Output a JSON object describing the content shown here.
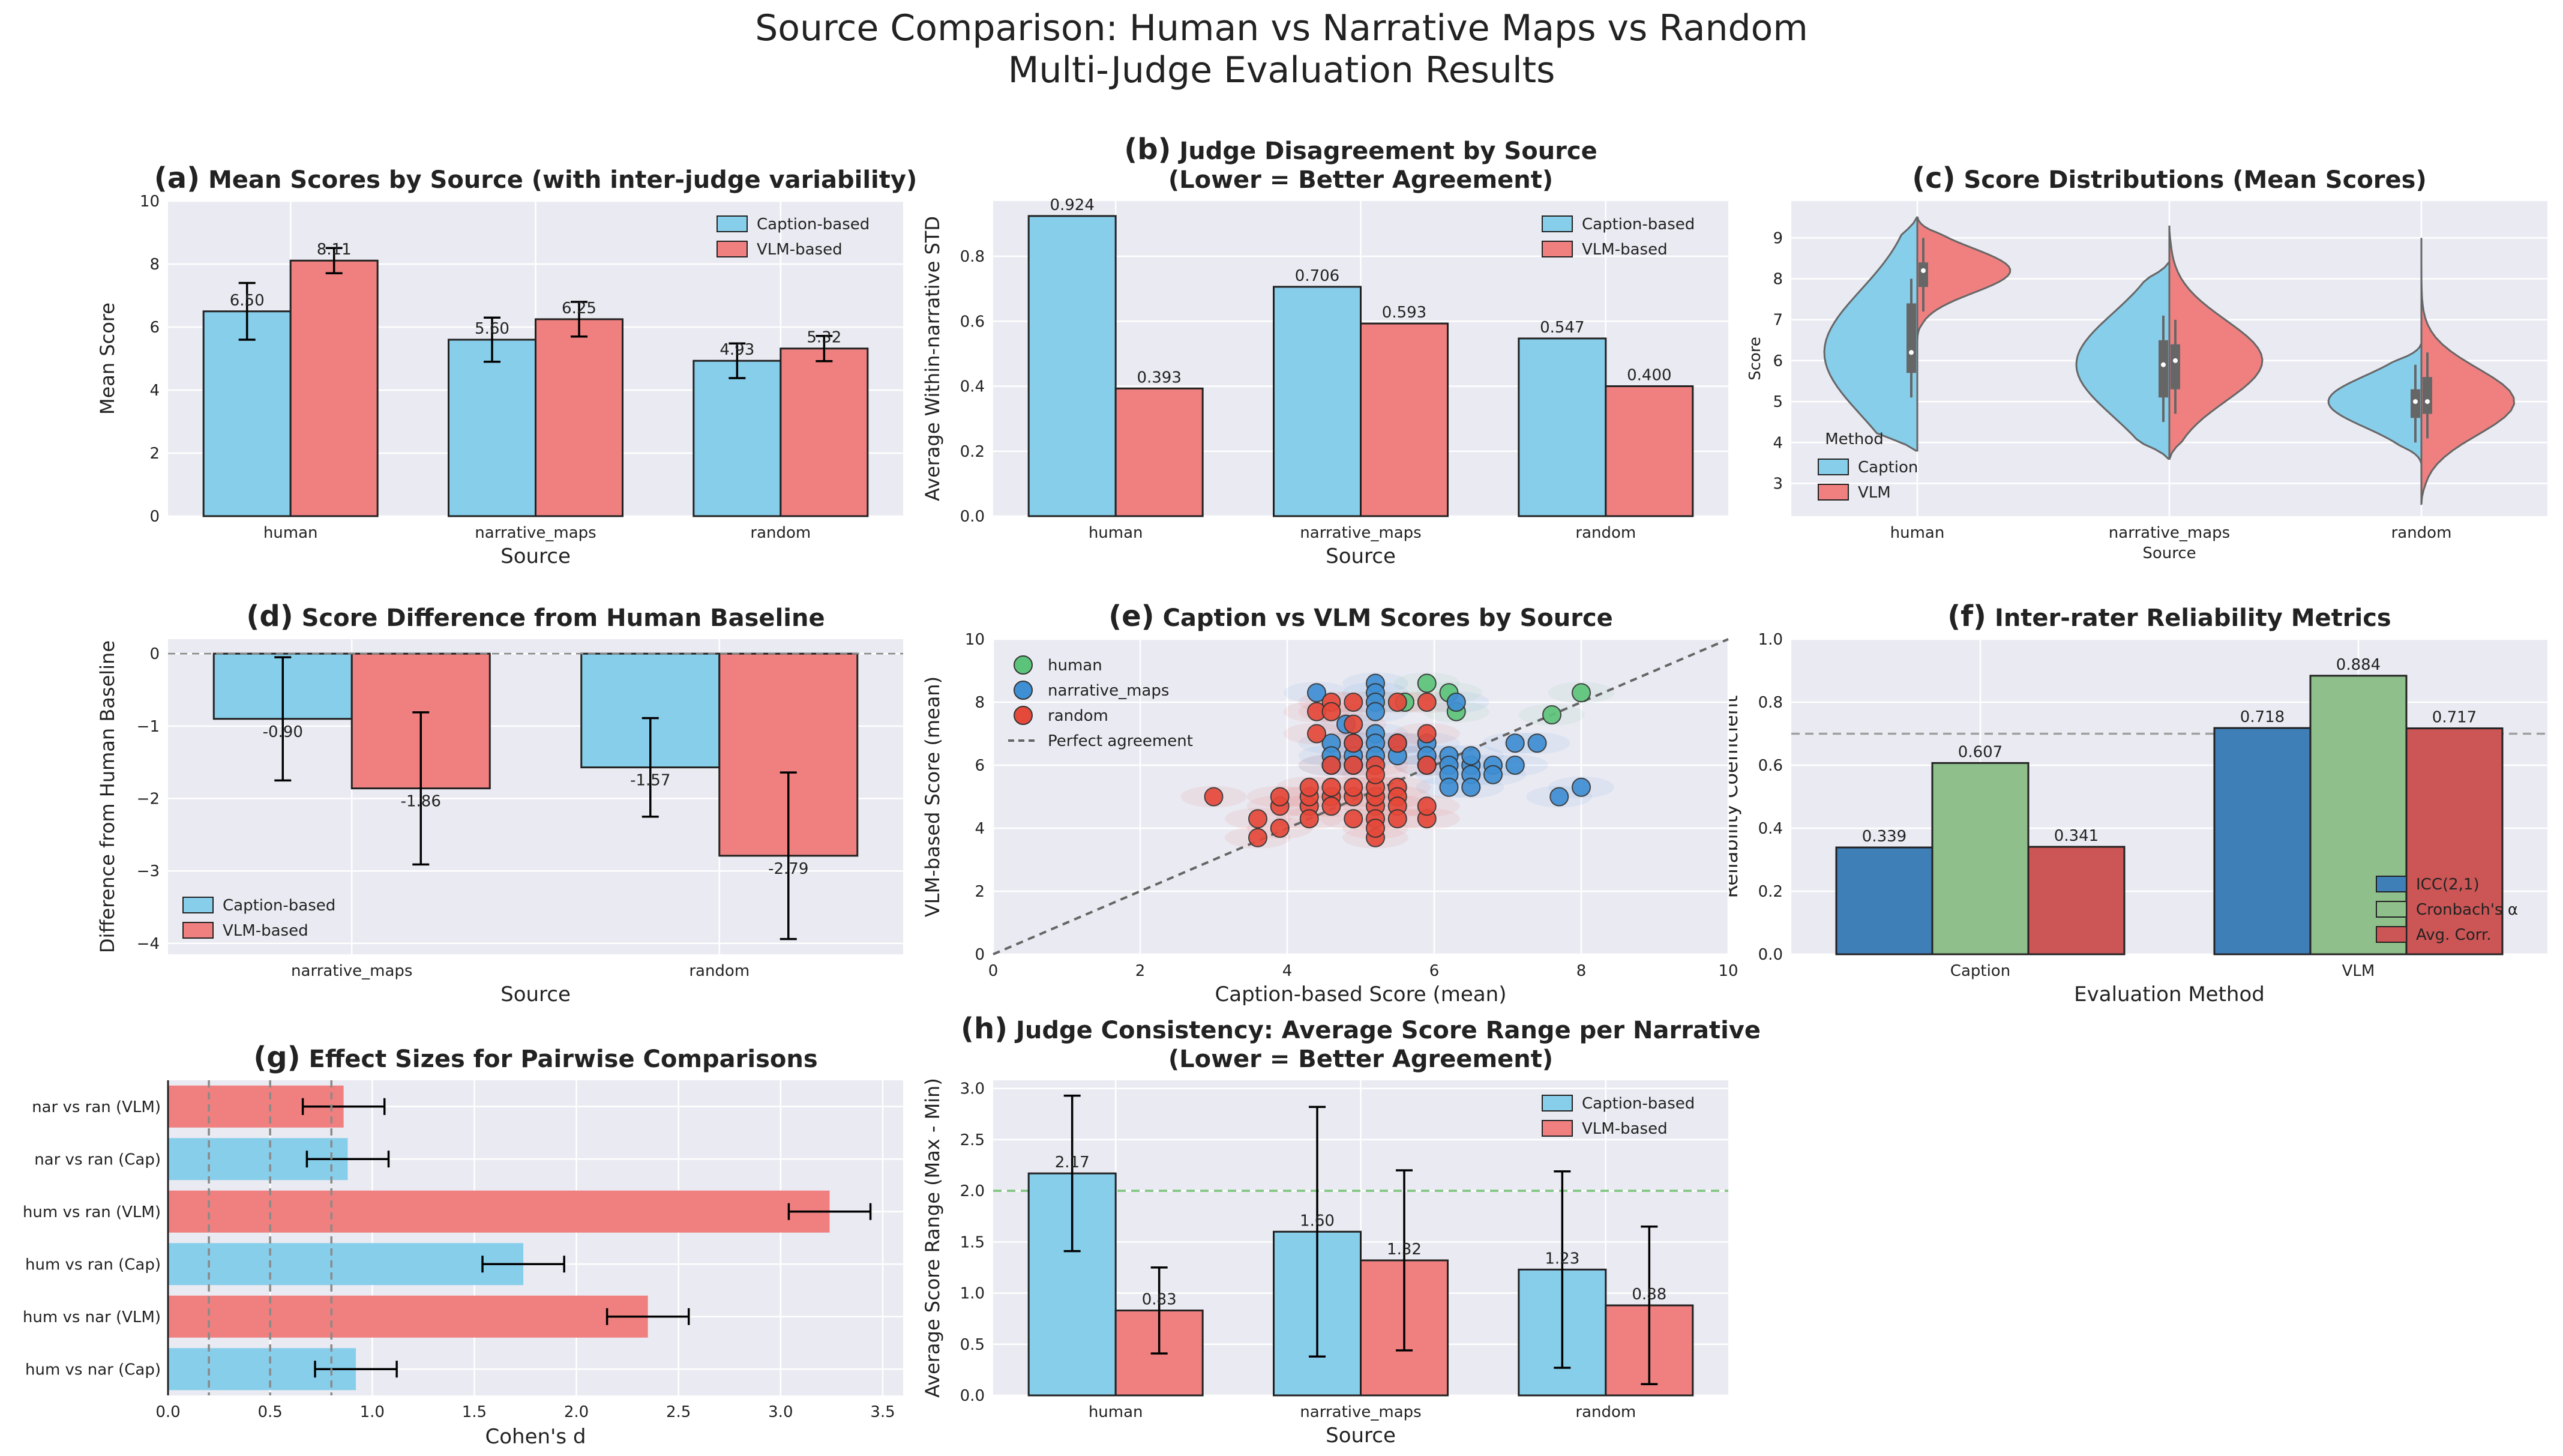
{
  "figure": {
    "title_line1": "Source Comparison: Human vs Narrative Maps vs Random",
    "title_line2": "Multi-Judge Evaluation Results"
  },
  "colors": {
    "caption": "#87CEEB",
    "vlm": "#F08080",
    "human_pt": "#5cc47a",
    "narrative_pt": "#3f8fd4",
    "random_pt": "#e5493a",
    "icc": "#3f7fb8",
    "alpha": "#8fbf8a",
    "corr": "#cc5555",
    "panel_bg": "#eaeaf2"
  },
  "chart_data": [
    {
      "id": "a",
      "type": "bar",
      "title": "Mean Scores by Source (with inter-judge variability)",
      "label": "(a)",
      "xlabel": "Source",
      "ylabel": "Mean Score",
      "ylim": [
        0,
        10
      ],
      "yticks": [
        0,
        2,
        4,
        6,
        8,
        10
      ],
      "categories": [
        "human",
        "narrative_maps",
        "random"
      ],
      "series": [
        {
          "name": "Caption-based",
          "values": [
            6.5,
            5.6,
            4.93
          ],
          "labels": [
            "6.50",
            "5.60",
            "4.93"
          ],
          "err": [
            0.9,
            0.7,
            0.55
          ]
        },
        {
          "name": "VLM-based",
          "values": [
            8.11,
            6.25,
            5.32
          ],
          "labels": [
            "8.11",
            "6.25",
            "5.32"
          ],
          "err": [
            0.4,
            0.55,
            0.4
          ]
        }
      ],
      "legend": "top-right"
    },
    {
      "id": "b",
      "type": "bar",
      "title": "Judge Disagreement by Source",
      "subtitle": "(Lower = Better Agreement)",
      "label": "(b)",
      "xlabel": "Source",
      "ylabel": "Average Within-narrative STD",
      "ylim": [
        0,
        0.97
      ],
      "yticks": [
        0.0,
        0.2,
        0.4,
        0.6,
        0.8
      ],
      "tick_labels": [
        "0.0",
        "0.2",
        "0.4",
        "0.6",
        "0.8"
      ],
      "categories": [
        "human",
        "narrative_maps",
        "random"
      ],
      "series": [
        {
          "name": "Caption-based",
          "values": [
            0.924,
            0.706,
            0.547
          ],
          "labels": [
            "0.924",
            "0.706",
            "0.547"
          ]
        },
        {
          "name": "VLM-based",
          "values": [
            0.393,
            0.593,
            0.4
          ],
          "labels": [
            "0.393",
            "0.593",
            "0.400"
          ]
        }
      ],
      "legend": "top-right"
    },
    {
      "id": "c",
      "type": "violin",
      "title": "Score Distributions (Mean Scores)",
      "label": "(c)",
      "xlabel": "Source",
      "ylabel": "Score",
      "ylim": [
        2.2,
        9.9
      ],
      "yticks": [
        3,
        4,
        5,
        6,
        7,
        8,
        9
      ],
      "categories": [
        "human",
        "narrative_maps",
        "random"
      ],
      "legend_title": "Method",
      "legend_entries": [
        "Caption",
        "VLM"
      ],
      "caption_stats": [
        {
          "min": 3.8,
          "max": 9.5,
          "median": 6.2,
          "q1": 5.7,
          "q3": 7.4
        },
        {
          "min": 3.6,
          "max": 8.4,
          "median": 5.9,
          "q1": 5.1,
          "q3": 6.5
        },
        {
          "min": 3.5,
          "max": 6.4,
          "median": 5.0,
          "q1": 4.6,
          "q3": 5.3
        }
      ],
      "vlm_stats": [
        {
          "min": 6.5,
          "max": 9.5,
          "median": 8.2,
          "q1": 7.8,
          "q3": 8.4
        },
        {
          "min": 3.6,
          "max": 9.3,
          "median": 6.0,
          "q1": 5.3,
          "q3": 6.4
        },
        {
          "min": 2.5,
          "max": 9.0,
          "median": 5.0,
          "q1": 4.7,
          "q3": 5.6
        }
      ]
    },
    {
      "id": "d",
      "type": "bar",
      "title": "Score Difference from Human Baseline",
      "label": "(d)",
      "xlabel": "Source",
      "ylabel": "Difference from Human Baseline",
      "ylim": [
        -4.15,
        0.2
      ],
      "yticks": [
        0,
        -1,
        -2,
        -3,
        -4
      ],
      "tick_labels": [
        "0",
        "−1",
        "−2",
        "−3",
        "−4"
      ],
      "categories": [
        "narrative_maps",
        "random"
      ],
      "series": [
        {
          "name": "Caption-based",
          "values": [
            -0.9,
            -1.57
          ],
          "labels": [
            "-0.90",
            "-1.57"
          ],
          "err": [
            0.85,
            0.68
          ]
        },
        {
          "name": "VLM-based",
          "values": [
            -1.86,
            -2.79
          ],
          "labels": [
            "-1.86",
            "-2.79"
          ],
          "err": [
            1.05,
            1.15
          ]
        }
      ],
      "legend": "lower-left"
    },
    {
      "id": "e",
      "type": "scatter",
      "title": "Caption vs VLM Scores by Source",
      "label": "(e)",
      "xlabel": "Caption-based Score (mean)",
      "ylabel": "VLM-based Score (mean)",
      "xlim": [
        0,
        10
      ],
      "ylim": [
        0,
        10
      ],
      "xticks": [
        0,
        2,
        4,
        6,
        8,
        10
      ],
      "yticks": [
        0,
        2,
        4,
        6,
        8,
        10
      ],
      "legend_entries": [
        "human",
        "narrative_maps",
        "random",
        "Perfect agreement"
      ],
      "series": [
        {
          "name": "human",
          "points": [
            [
              5.9,
              8.6
            ],
            [
              5.6,
              8.0
            ],
            [
              6.3,
              7.7
            ],
            [
              7.6,
              7.6
            ],
            [
              8.0,
              8.3
            ],
            [
              6.2,
              8.3
            ]
          ]
        },
        {
          "name": "narrative_maps",
          "points": [
            [
              4.4,
              8.3
            ],
            [
              5.2,
              8.6
            ],
            [
              5.2,
              8.3
            ],
            [
              5.2,
              8.0
            ],
            [
              5.2,
              7.7
            ],
            [
              6.3,
              8.0
            ],
            [
              4.8,
              7.3
            ],
            [
              4.6,
              6.7
            ],
            [
              4.6,
              6.3
            ],
            [
              4.6,
              6.0
            ],
            [
              4.9,
              6.7
            ],
            [
              4.9,
              6.3
            ],
            [
              4.9,
              6.0
            ],
            [
              5.2,
              7.0
            ],
            [
              5.2,
              6.7
            ],
            [
              5.2,
              6.3
            ],
            [
              5.5,
              6.7
            ],
            [
              5.5,
              6.3
            ],
            [
              5.9,
              6.7
            ],
            [
              5.9,
              6.3
            ],
            [
              6.2,
              6.3
            ],
            [
              6.2,
              6.0
            ],
            [
              5.9,
              6.0
            ],
            [
              6.2,
              5.7
            ],
            [
              6.2,
              5.3
            ],
            [
              6.5,
              6.0
            ],
            [
              6.5,
              5.7
            ],
            [
              6.5,
              5.3
            ],
            [
              6.8,
              6.0
            ],
            [
              6.8,
              5.7
            ],
            [
              7.1,
              6.7
            ],
            [
              7.4,
              6.7
            ],
            [
              7.1,
              6.0
            ],
            [
              6.5,
              6.3
            ],
            [
              7.7,
              5.0
            ],
            [
              8.0,
              5.3
            ]
          ]
        },
        {
          "name": "random",
          "points": [
            [
              3.0,
              5.0
            ],
            [
              3.6,
              3.7
            ],
            [
              3.6,
              4.3
            ],
            [
              3.9,
              4.0
            ],
            [
              3.9,
              4.7
            ],
            [
              3.9,
              5.0
            ],
            [
              4.3,
              4.7
            ],
            [
              4.3,
              4.3
            ],
            [
              4.3,
              5.0
            ],
            [
              4.3,
              5.3
            ],
            [
              4.4,
              7.7
            ],
            [
              4.4,
              7.0
            ],
            [
              4.6,
              5.0
            ],
            [
              4.6,
              4.7
            ],
            [
              4.6,
              5.3
            ],
            [
              4.6,
              6.0
            ],
            [
              4.9,
              4.3
            ],
            [
              4.9,
              5.0
            ],
            [
              4.9,
              5.3
            ],
            [
              4.9,
              6.0
            ],
            [
              4.9,
              6.7
            ],
            [
              4.9,
              7.3
            ],
            [
              4.9,
              8.0
            ],
            [
              5.2,
              4.7
            ],
            [
              5.2,
              5.0
            ],
            [
              5.2,
              5.3
            ],
            [
              5.2,
              4.3
            ],
            [
              5.2,
              3.7
            ],
            [
              5.2,
              4.0
            ],
            [
              5.2,
              6.0
            ],
            [
              5.2,
              5.7
            ],
            [
              5.5,
              5.3
            ],
            [
              5.5,
              5.0
            ],
            [
              5.5,
              4.7
            ],
            [
              5.5,
              4.3
            ],
            [
              5.5,
              6.7
            ],
            [
              5.5,
              8.0
            ],
            [
              5.9,
              4.3
            ],
            [
              5.9,
              4.7
            ],
            [
              5.9,
              6.0
            ],
            [
              5.9,
              7.0
            ],
            [
              5.9,
              8.0
            ],
            [
              4.6,
              8.0
            ],
            [
              4.6,
              7.7
            ]
          ]
        }
      ],
      "reference_line": "Perfect agreement"
    },
    {
      "id": "f",
      "type": "bar",
      "title": "Inter-rater Reliability Metrics",
      "label": "(f)",
      "xlabel": "Evaluation Method",
      "ylabel": "Reliability Coefficient",
      "ylim": [
        0,
        1.0
      ],
      "yticks": [
        0.0,
        0.2,
        0.4,
        0.6,
        0.8,
        1.0
      ],
      "tick_labels": [
        "0.0",
        "0.2",
        "0.4",
        "0.6",
        "0.8",
        "1.0"
      ],
      "categories": [
        "Caption",
        "VLM"
      ],
      "series": [
        {
          "name": "ICC(2,1)",
          "values": [
            0.339,
            0.718
          ],
          "labels": [
            "0.339",
            "0.718"
          ]
        },
        {
          "name": "Cronbach's α",
          "values": [
            0.607,
            0.884
          ],
          "labels": [
            "0.607",
            "0.884"
          ]
        },
        {
          "name": "Avg. Corr.",
          "values": [
            0.341,
            0.717
          ],
          "labels": [
            "0.341",
            "0.717"
          ]
        }
      ],
      "threshold": 0.7,
      "legend": "lower-right"
    },
    {
      "id": "g",
      "type": "barh",
      "title": "Effect Sizes for Pairwise Comparisons",
      "label": "(g)",
      "xlabel": "Cohen's d",
      "xlim": [
        0,
        3.6
      ],
      "xticks": [
        0.0,
        0.5,
        1.0,
        1.5,
        2.0,
        2.5,
        3.0,
        3.5
      ],
      "tick_labels": [
        "0.0",
        "0.5",
        "1.0",
        "1.5",
        "2.0",
        "2.5",
        "3.0",
        "3.5"
      ],
      "categories": [
        "nar vs ran (VLM)",
        "nar vs ran (Cap)",
        "hum vs ran (VLM)",
        "hum vs ran (Cap)",
        "hum vs nar (VLM)",
        "hum vs nar (Cap)"
      ],
      "values": [
        0.86,
        0.88,
        3.24,
        1.74,
        2.35,
        0.92
      ],
      "err": [
        0.2,
        0.2,
        0.2,
        0.2,
        0.2,
        0.2
      ],
      "kinds": [
        "vlm",
        "cap",
        "vlm",
        "cap",
        "vlm",
        "cap"
      ],
      "reference_lines": [
        0.2,
        0.5,
        0.8
      ]
    },
    {
      "id": "h",
      "type": "bar",
      "title": "Judge Consistency: Average Score Range per Narrative",
      "subtitle": "(Lower = Better Agreement)",
      "label": "(h)",
      "xlabel": "Source",
      "ylabel": "Average Score Range (Max - Min)",
      "ylim": [
        0,
        3.08
      ],
      "yticks": [
        0.0,
        0.5,
        1.0,
        1.5,
        2.0,
        2.5,
        3.0
      ],
      "tick_labels": [
        "0.0",
        "0.5",
        "1.0",
        "1.5",
        "2.0",
        "2.5",
        "3.0"
      ],
      "categories": [
        "human",
        "narrative_maps",
        "random"
      ],
      "series": [
        {
          "name": "Caption-based",
          "values": [
            2.17,
            1.6,
            1.23
          ],
          "labels": [
            "2.17",
            "1.60",
            "1.23"
          ],
          "err": [
            0.76,
            1.22,
            0.96
          ]
        },
        {
          "name": "VLM-based",
          "values": [
            0.83,
            1.32,
            0.88
          ],
          "labels": [
            "0.83",
            "1.32",
            "0.88"
          ],
          "err": [
            0.42,
            0.88,
            0.77
          ]
        }
      ],
      "threshold": 2.0,
      "legend": "top-right"
    }
  ]
}
